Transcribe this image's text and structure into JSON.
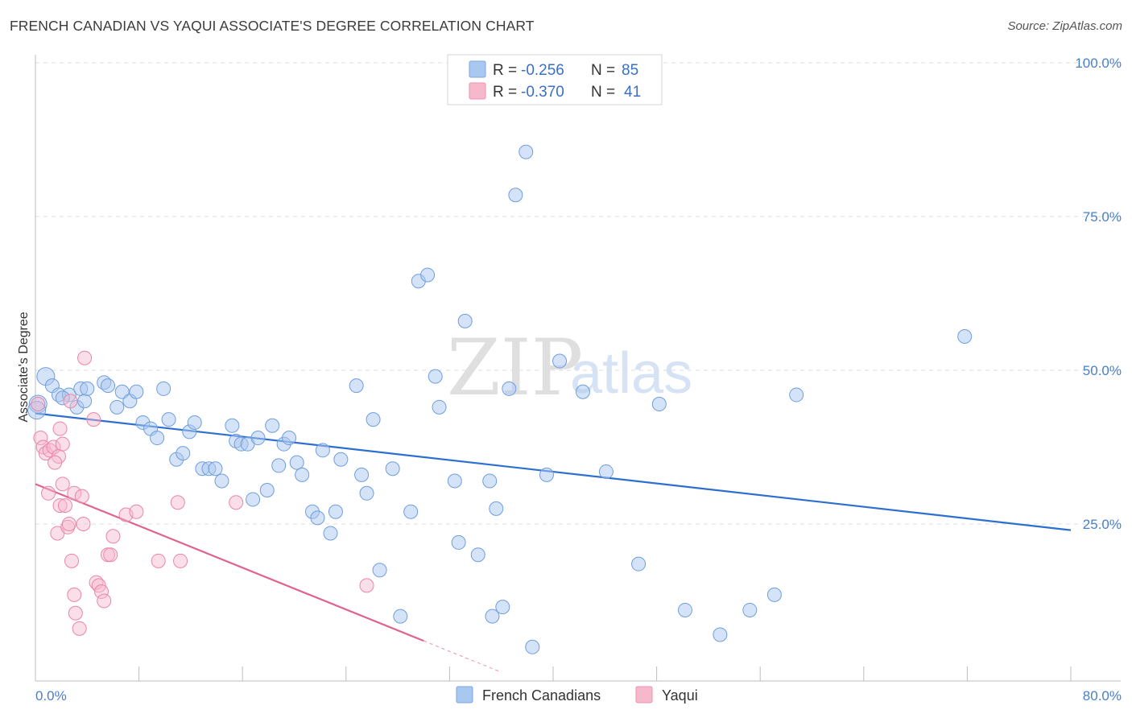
{
  "header": {
    "title": "FRENCH CANADIAN VS YAQUI ASSOCIATE'S DEGREE CORRELATION CHART",
    "source": "Source: ZipAtlas.com"
  },
  "watermark": {
    "zip": "ZIP",
    "atlas": "atlas"
  },
  "legend": {
    "rows": [
      {
        "r_label": "R =",
        "r_value": "-0.256",
        "n_label": "N =",
        "n_value": "85",
        "color": "#a9c8f0"
      },
      {
        "r_label": "R =",
        "r_value": "-0.370",
        "n_label": "N =",
        "n_value": "41",
        "color": "#f6b9cc"
      }
    ]
  },
  "bottom_legend": {
    "items": [
      {
        "label": "French Canadians",
        "color": "#a9c8f0"
      },
      {
        "label": "Yaqui",
        "color": "#f6b9cc"
      }
    ]
  },
  "chart_data": {
    "type": "scatter",
    "title": "FRENCH CANADIAN VS YAQUI ASSOCIATE'S DEGREE CORRELATION CHART",
    "xlabel": "",
    "ylabel": "Associate's Degree",
    "xlim": [
      0,
      80
    ],
    "ylim": [
      0,
      100
    ],
    "x_tick_labels": [
      "0.0%",
      "80.0%"
    ],
    "y_tick_labels": [
      "25.0%",
      "50.0%",
      "75.0%",
      "100.0%"
    ],
    "y_ticks": [
      25,
      50,
      75,
      100
    ],
    "grid": "horizontal dashed",
    "legend_position": "top-center",
    "series": [
      {
        "name": "French Canadians",
        "color": "#a9c8f0",
        "line_color": "#2d6fd0",
        "trend": {
          "x": [
            0,
            80
          ],
          "y": [
            43.0,
            24.0
          ]
        },
        "points": [
          [
            0.2,
            44.5
          ],
          [
            0.8,
            49
          ],
          [
            1.3,
            47.5
          ],
          [
            1.8,
            46
          ],
          [
            2.6,
            46
          ],
          [
            3.2,
            44
          ],
          [
            3.5,
            47
          ],
          [
            3.8,
            45
          ],
          [
            4.0,
            47
          ],
          [
            5.3,
            48
          ],
          [
            5.6,
            47.5
          ],
          [
            6.3,
            44
          ],
          [
            6.7,
            46.5
          ],
          [
            7.3,
            45
          ],
          [
            7.8,
            46.5
          ],
          [
            8.3,
            41.5
          ],
          [
            8.9,
            40.5
          ],
          [
            9.4,
            39
          ],
          [
            9.9,
            47
          ],
          [
            10.3,
            42
          ],
          [
            10.9,
            35.5
          ],
          [
            11.4,
            36.5
          ],
          [
            11.9,
            40
          ],
          [
            12.3,
            41.5
          ],
          [
            12.9,
            34
          ],
          [
            13.4,
            34
          ],
          [
            13.9,
            34
          ],
          [
            14.4,
            32
          ],
          [
            15.2,
            41
          ],
          [
            15.5,
            38.5
          ],
          [
            15.9,
            38
          ],
          [
            16.4,
            38
          ],
          [
            16.8,
            29
          ],
          [
            17.2,
            39
          ],
          [
            17.9,
            30.5
          ],
          [
            18.3,
            41
          ],
          [
            18.8,
            34.5
          ],
          [
            19.2,
            38
          ],
          [
            19.6,
            39
          ],
          [
            20.2,
            35
          ],
          [
            20.6,
            33
          ],
          [
            21.4,
            27
          ],
          [
            21.8,
            26
          ],
          [
            22.2,
            37
          ],
          [
            22.8,
            23.5
          ],
          [
            23.2,
            27
          ],
          [
            23.6,
            35.5
          ],
          [
            24.8,
            47.5
          ],
          [
            25.2,
            33
          ],
          [
            25.6,
            30
          ],
          [
            26.1,
            42
          ],
          [
            26.6,
            17.5
          ],
          [
            27.6,
            34
          ],
          [
            28.2,
            10
          ],
          [
            29.0,
            27
          ],
          [
            29.6,
            64.5
          ],
          [
            30.3,
            65.5
          ],
          [
            30.9,
            49
          ],
          [
            31.2,
            44
          ],
          [
            32.4,
            32
          ],
          [
            32.7,
            22
          ],
          [
            33.2,
            58
          ],
          [
            34.2,
            20
          ],
          [
            35.1,
            32
          ],
          [
            35.3,
            10
          ],
          [
            35.6,
            27.5
          ],
          [
            36.1,
            11.5
          ],
          [
            36.6,
            47
          ],
          [
            37.1,
            78.5
          ],
          [
            37.9,
            85.5
          ],
          [
            38.4,
            5
          ],
          [
            39.5,
            33
          ],
          [
            40.5,
            51.5
          ],
          [
            42.3,
            46.5
          ],
          [
            44.1,
            33.5
          ],
          [
            46.6,
            18.5
          ],
          [
            48.2,
            44.5
          ],
          [
            50.2,
            11
          ],
          [
            52.9,
            7
          ],
          [
            55.2,
            11
          ],
          [
            57.1,
            13.5
          ],
          [
            58.8,
            46
          ],
          [
            71.8,
            55.5
          ],
          [
            0.1,
            43.5
          ],
          [
            2.1,
            45.5
          ]
        ],
        "r": -0.256,
        "n": 85
      },
      {
        "name": "Yaqui",
        "color": "#f6b9cc",
        "line_color": "#e0628f",
        "trend": {
          "x": [
            0,
            30
          ],
          "y": [
            31.5,
            6.0
          ]
        },
        "trend_dashed_extension": {
          "x": [
            30,
            36
          ],
          "y": [
            6.0,
            0.9
          ]
        },
        "points": [
          [
            0.2,
            44.5
          ],
          [
            0.4,
            39
          ],
          [
            0.6,
            37.5
          ],
          [
            0.8,
            36.5
          ],
          [
            1.1,
            37
          ],
          [
            1.4,
            37.5
          ],
          [
            1.8,
            36
          ],
          [
            1.9,
            40.5
          ],
          [
            2.1,
            38
          ],
          [
            1.5,
            35
          ],
          [
            1.0,
            30
          ],
          [
            1.7,
            23.5
          ],
          [
            1.9,
            28
          ],
          [
            2.1,
            31.5
          ],
          [
            2.3,
            28
          ],
          [
            2.5,
            24.5
          ],
          [
            2.6,
            25
          ],
          [
            2.7,
            45
          ],
          [
            3.0,
            30
          ],
          [
            2.8,
            19
          ],
          [
            3.0,
            13.5
          ],
          [
            3.1,
            10.5
          ],
          [
            3.4,
            8
          ],
          [
            3.6,
            29.5
          ],
          [
            3.7,
            25
          ],
          [
            3.8,
            52
          ],
          [
            4.5,
            42
          ],
          [
            4.7,
            15.5
          ],
          [
            4.9,
            15
          ],
          [
            5.1,
            14
          ],
          [
            5.3,
            12.5
          ],
          [
            5.6,
            20
          ],
          [
            5.8,
            20
          ],
          [
            6.0,
            23
          ],
          [
            7.0,
            26.5
          ],
          [
            7.8,
            27
          ],
          [
            9.5,
            19
          ],
          [
            11.0,
            28.5
          ],
          [
            11.2,
            19
          ],
          [
            15.5,
            28.5
          ],
          [
            25.6,
            15
          ]
        ],
        "r": -0.37,
        "n": 41
      }
    ]
  }
}
